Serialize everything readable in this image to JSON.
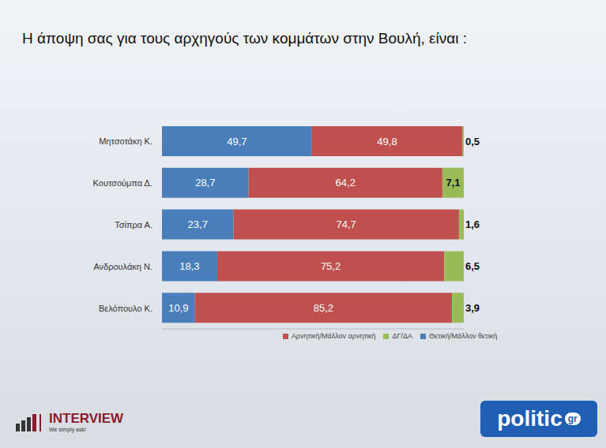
{
  "chart_data": {
    "type": "bar",
    "orientation": "horizontal",
    "stacked": true,
    "data_labels": true,
    "tick_labels": "y",
    "legend": "bottom",
    "title": "Η άποψη σας για τους αρχηγούς των κομμάτων στην Βουλή, είναι :",
    "annotations": [
      "INTERVIEW",
      "We simply ask!",
      "politic",
      "gr"
    ],
    "categories": [
      "Μητσοτάκη Κ.",
      "Κουτσούμπα Δ.",
      "Τσίπρα Α.",
      "Ανδρουλάκη Ν.",
      "Βελόπουλο Κ."
    ],
    "xlim": [
      0,
      100
    ],
    "series": [
      {
        "name": "Θετική/Μάλλον θετική",
        "color": "#4a7ebb",
        "values": [
          49.7,
          28.7,
          23.7,
          18.3,
          10.9
        ],
        "value_labels": [
          "49,7",
          "28,7",
          "23,7",
          "18,3",
          "10,9"
        ]
      },
      {
        "name": "Αρνητική/Μάλλον αρνητική",
        "color": "#c0504d",
        "values": [
          49.8,
          64.2,
          74.7,
          75.2,
          85.2
        ],
        "value_labels": [
          "49,8",
          "64,2",
          "74,7",
          "75,2",
          "85,2"
        ]
      },
      {
        "name": "ΔΓ/ΔΑ",
        "color": "#9bbb59",
        "values": [
          0.5,
          7.1,
          1.6,
          6.5,
          3.9
        ],
        "value_labels": [
          "0,5",
          "7,1",
          "1,6",
          "6,5",
          "3,9"
        ]
      }
    ]
  }
}
